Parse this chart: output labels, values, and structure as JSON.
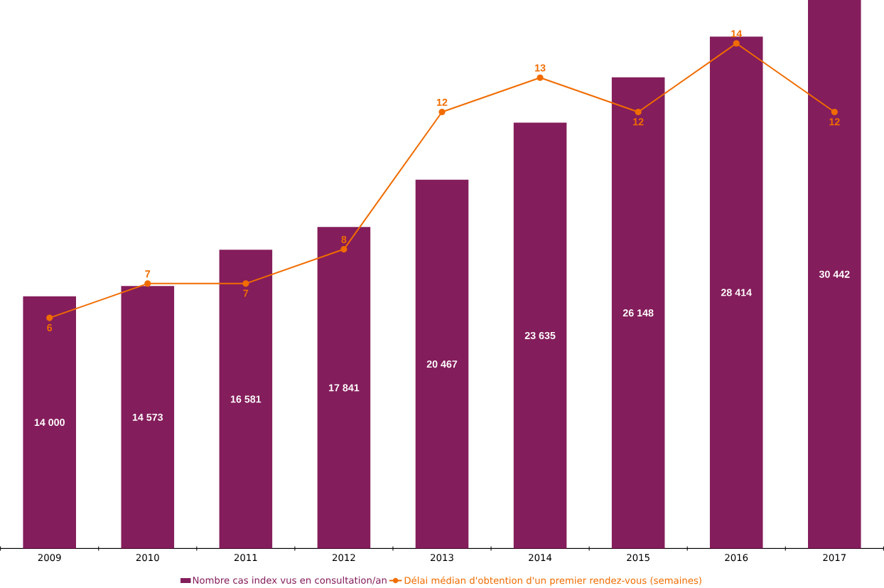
{
  "chart_data": {
    "type": "bar",
    "categories": [
      "2009",
      "2010",
      "2011",
      "2012",
      "2013",
      "2014",
      "2015",
      "2016",
      "2017"
    ],
    "series": [
      {
        "name": "Nombre cas index vus en consultation/an",
        "color": "#841d5b",
        "values": [
          14000,
          14573,
          16581,
          17841,
          20467,
          23635,
          26148,
          28414,
          30442
        ],
        "value_labels": [
          "14 000",
          "14 573",
          "16 581",
          "17 841",
          "20 467",
          "23 635",
          "26 148",
          "28 414",
          "30 442"
        ]
      },
      {
        "name": "Délai médian d'obtention d'un premier rendez-vous (semaines)",
        "type": "line",
        "axis": "y2",
        "color": "#f06c00",
        "marker": "circle",
        "values": [
          6,
          7,
          7,
          8,
          12,
          13,
          12,
          14,
          12
        ],
        "value_labels": [
          "6",
          "7",
          "7",
          "8",
          "12",
          "13",
          "12",
          "14",
          "12"
        ]
      }
    ],
    "legend": "bottom",
    "grid": false
  }
}
